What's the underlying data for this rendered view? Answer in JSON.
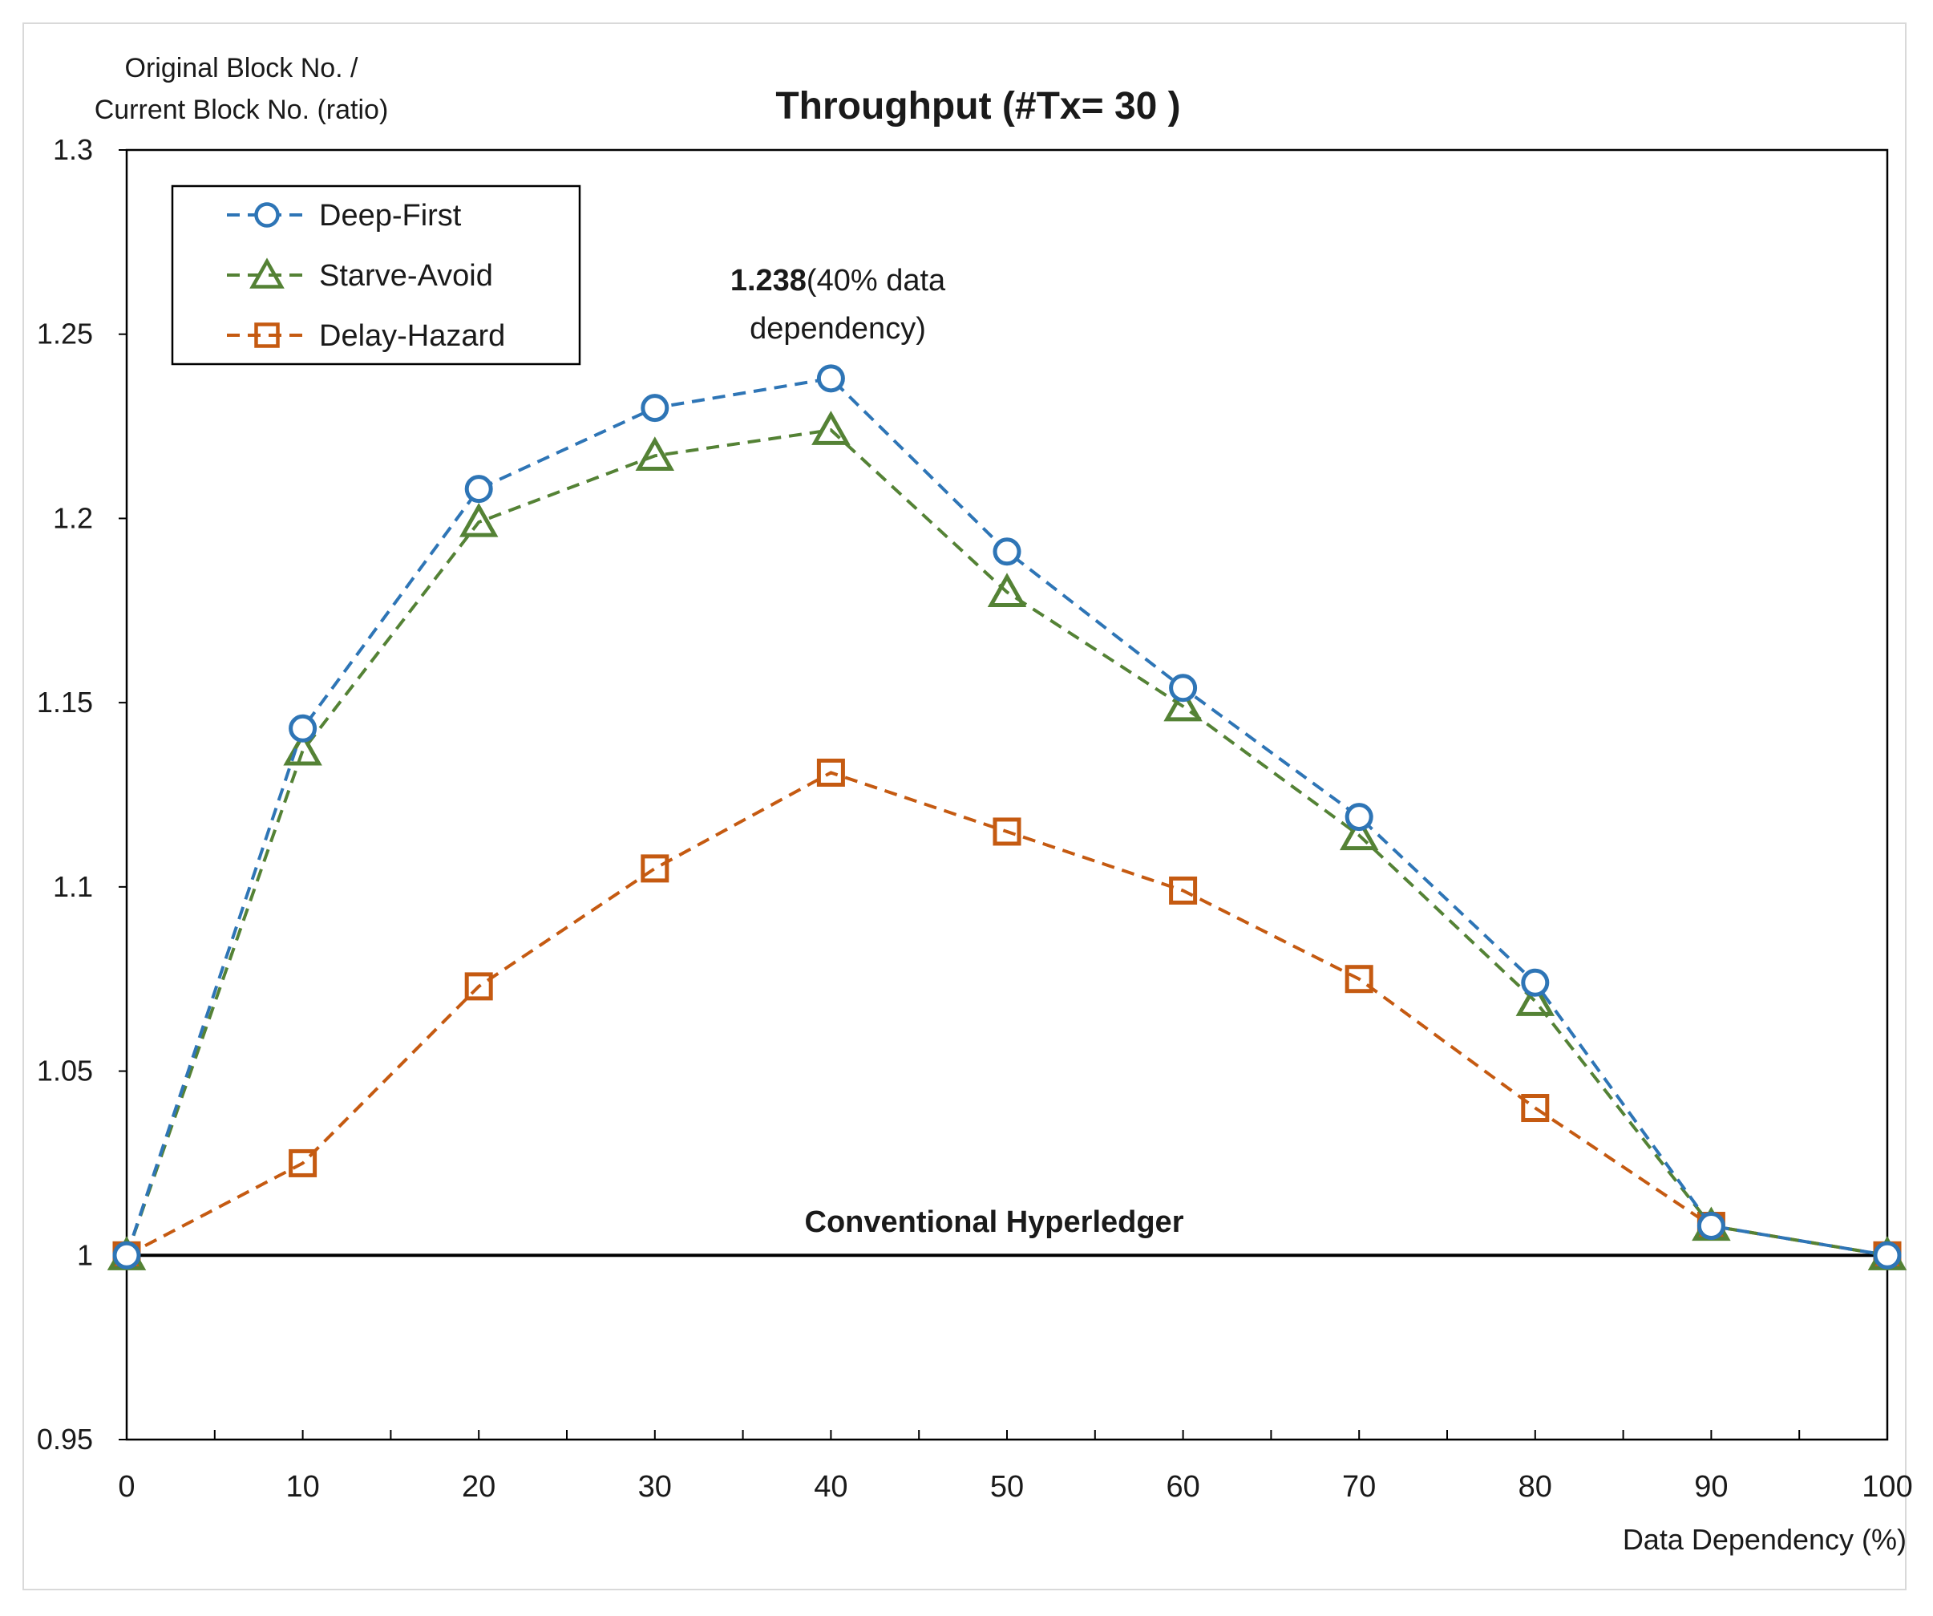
{
  "chart_data": {
    "type": "line",
    "title": "Throughput (#Tx= 30 )",
    "ylabel_lines": [
      "Original Block No. /",
      "Current Block No. (ratio)"
    ],
    "xlabel": "Data Dependency (%)",
    "x": [
      0,
      10,
      20,
      30,
      40,
      50,
      60,
      70,
      80,
      90,
      100
    ],
    "xlim": [
      0,
      100
    ],
    "ylim": [
      0.95,
      1.3
    ],
    "y_ticks": [
      0.95,
      1,
      1.05,
      1.1,
      1.15,
      1.2,
      1.25,
      1.3
    ],
    "y_tick_labels": [
      "0.95",
      "1",
      "1.05",
      "1.1",
      "1.15",
      "1.2",
      "1.25",
      "1.3"
    ],
    "x_tick_labels": [
      "0",
      "10",
      "20",
      "30",
      "40",
      "50",
      "60",
      "70",
      "80",
      "90",
      "100"
    ],
    "grid": false,
    "legend_position": "top-left",
    "series": [
      {
        "name": "Deep-First",
        "color": "#2e75b6",
        "marker": "circle",
        "values": [
          1.0,
          1.143,
          1.208,
          1.23,
          1.238,
          1.191,
          1.154,
          1.119,
          1.074,
          1.008,
          1.0
        ]
      },
      {
        "name": "Starve-Avoid",
        "color": "#548235",
        "marker": "triangle",
        "values": [
          1.0,
          1.137,
          1.199,
          1.217,
          1.224,
          1.18,
          1.149,
          1.114,
          1.069,
          1.008,
          1.0
        ]
      },
      {
        "name": "Delay-Hazard",
        "color": "#c55a11",
        "marker": "square",
        "values": [
          1.0,
          1.025,
          1.073,
          1.105,
          1.131,
          1.115,
          1.099,
          1.075,
          1.04,
          1.008,
          1.0
        ]
      }
    ],
    "baseline": {
      "y": 1.0,
      "label": "Conventional Hyperledger",
      "color": "#000000"
    },
    "annotation": {
      "bold": "1.238",
      "rest_line1": "(40% data",
      "line2": "dependency)",
      "x": 40,
      "y": 1.238
    }
  }
}
